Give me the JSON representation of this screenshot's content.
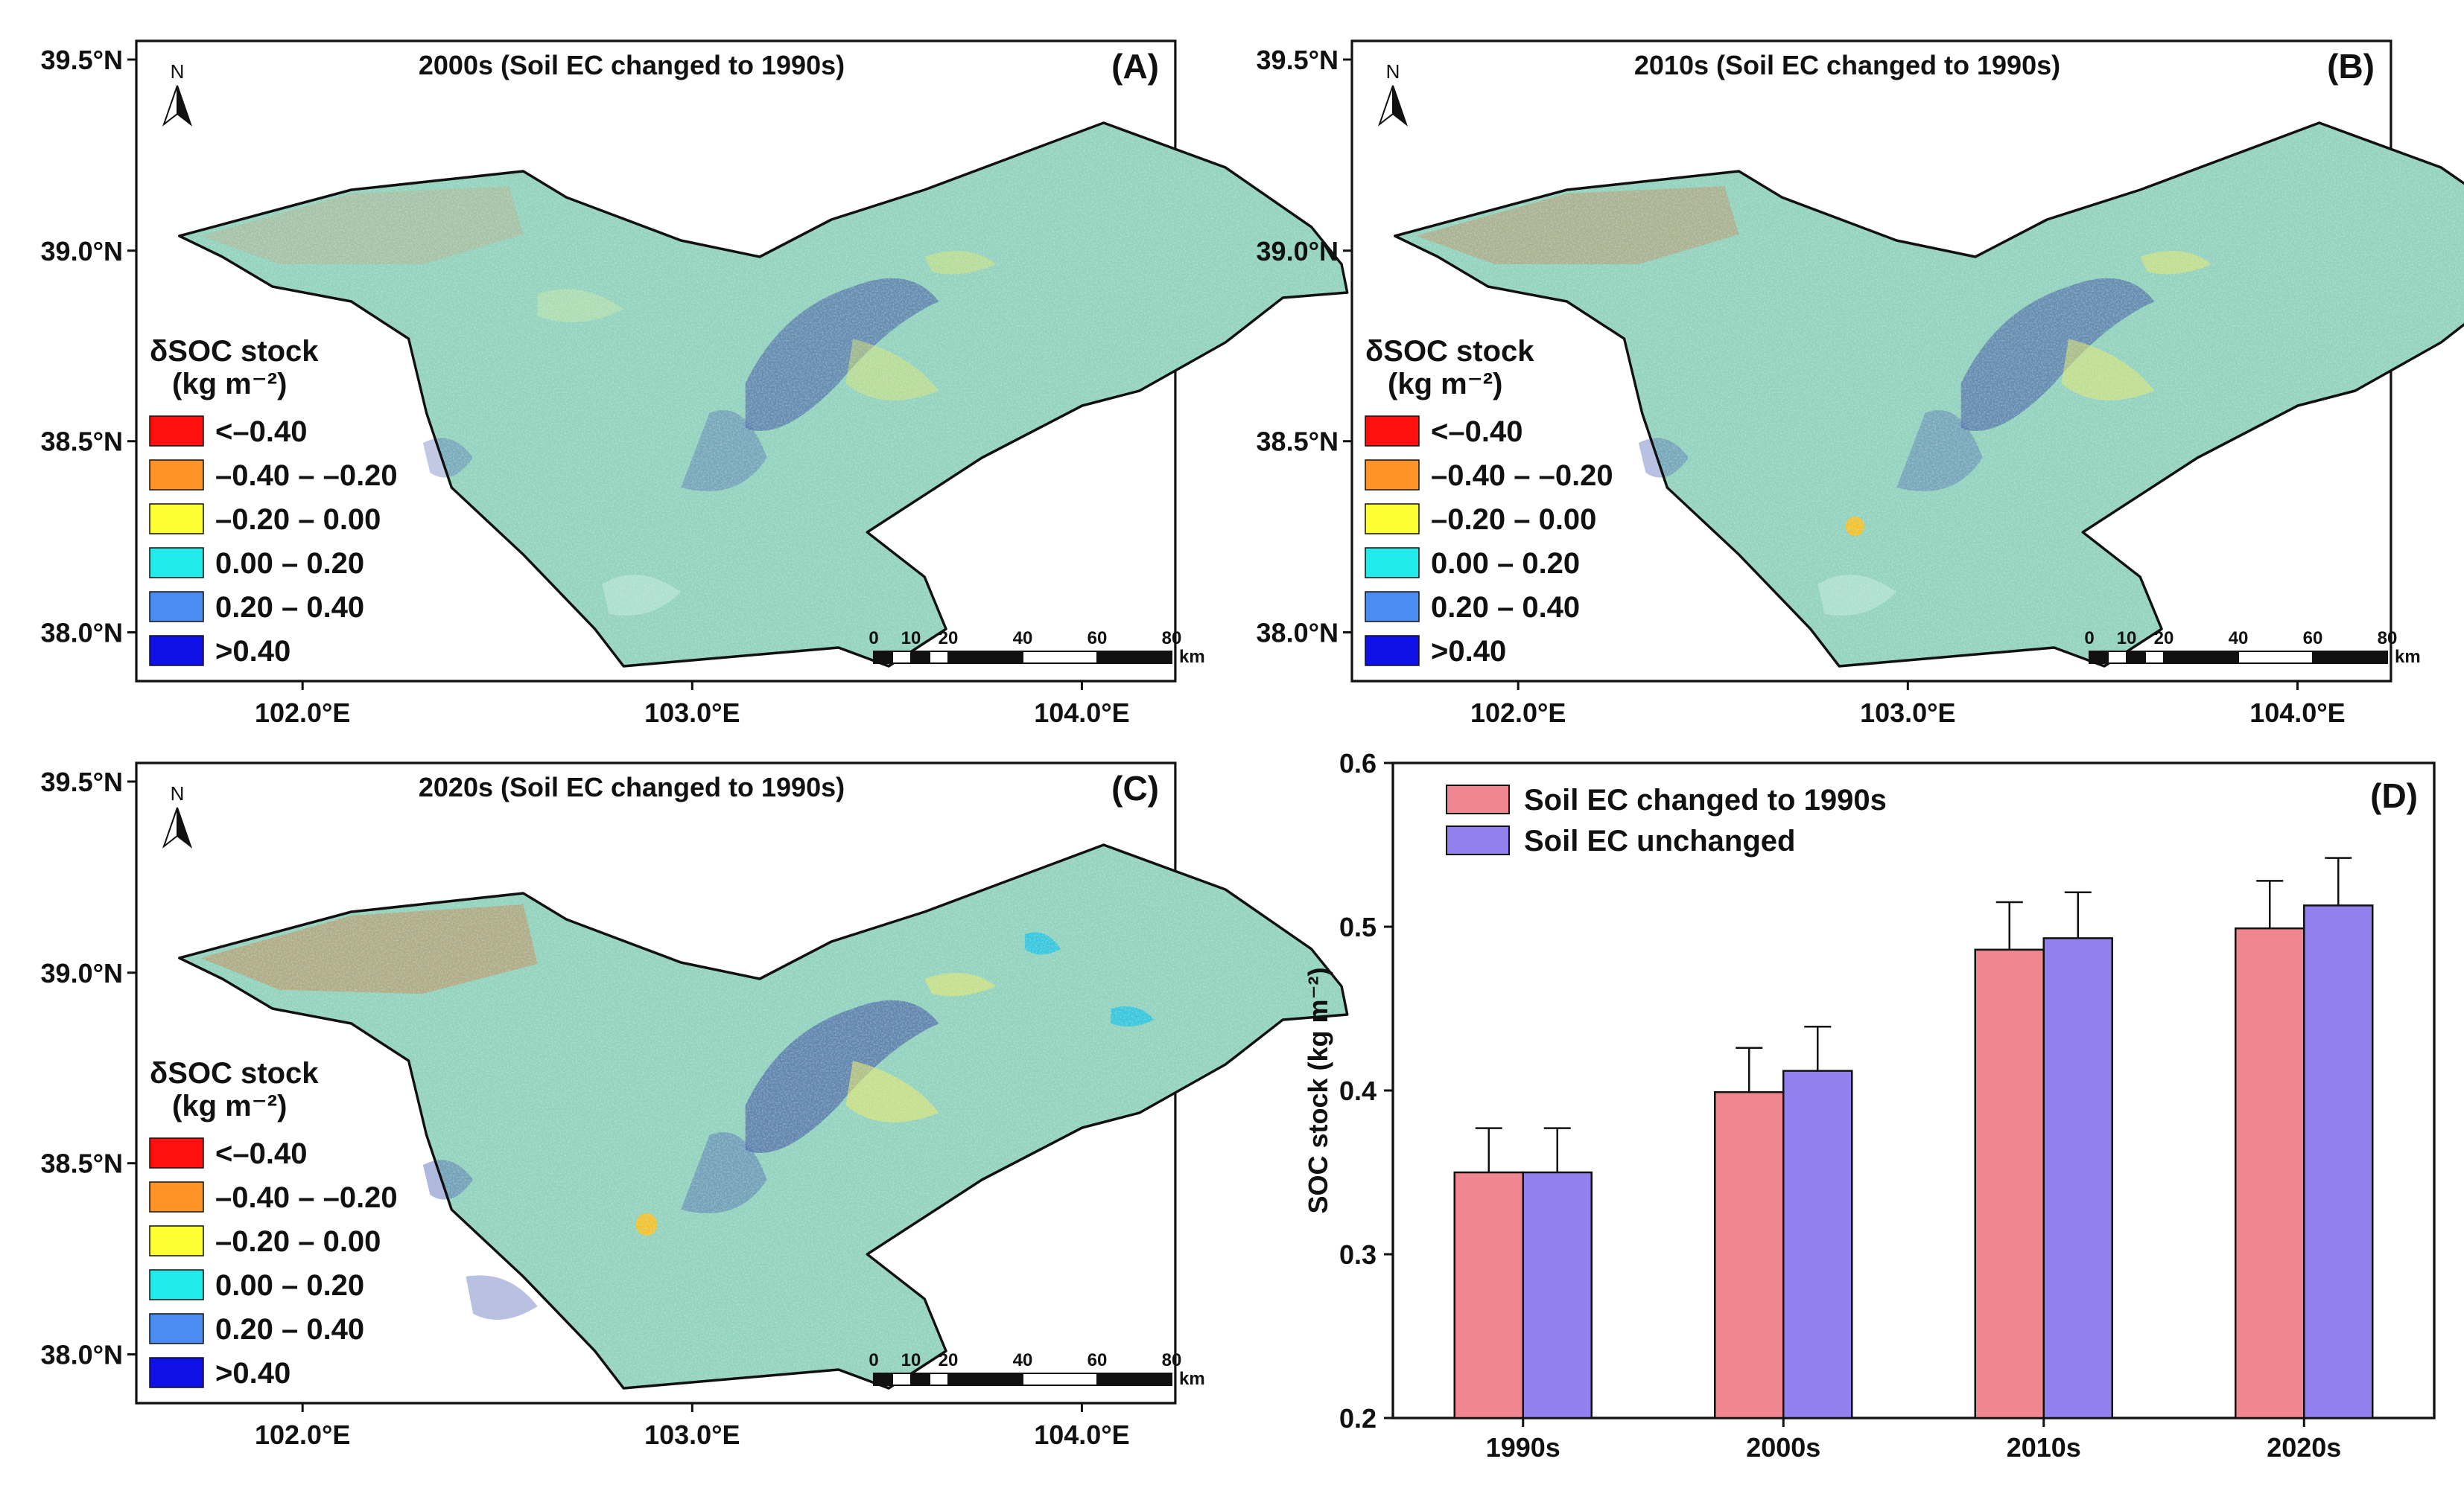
{
  "figure": {
    "panels": [
      {
        "label": "(A)",
        "title": "2000s (Soil EC changed to 1990s)",
        "variant": 0
      },
      {
        "label": "(B)",
        "title": "2010s (Soil EC changed to 1990s)",
        "variant": 1
      },
      {
        "label": "(C)",
        "title": "2020s (Soil EC changed to 1990s)",
        "variant": 2
      }
    ],
    "map_axes": {
      "lat_labels": [
        "39.5°N",
        "39.0°N",
        "38.5°N",
        "38.0°N"
      ],
      "lon_labels": [
        "102.0°E",
        "103.0°E",
        "104.0°E"
      ]
    },
    "north_arrow": "N",
    "legend": {
      "title_line1": "δSOC stock",
      "title_line2": "(kg m⁻²)",
      "items": [
        {
          "label": "<–0.40",
          "color": "#ff1010"
        },
        {
          "label": "–0.40 – –0.20",
          "color": "#ff9326"
        },
        {
          "label": "–0.20 – 0.00",
          "color": "#ffff33"
        },
        {
          "label": "0.00 – 0.20",
          "color": "#22eaea"
        },
        {
          "label": "0.20 – 0.40",
          "color": "#4a8cf0"
        },
        {
          "label": ">0.40",
          "color": "#1010e8"
        }
      ]
    },
    "scale_bar": {
      "labels": [
        "0",
        "10",
        "20",
        "40",
        "60",
        "80"
      ],
      "unit": "km"
    },
    "colors": {
      "bar_changed": "#f0868f",
      "bar_unchanged": "#9280ee",
      "map_base": "#93d2be",
      "outline": "#111111"
    }
  },
  "chart_data": {
    "type": "bar",
    "panel_label": "(D)",
    "categories": [
      "1990s",
      "2000s",
      "2010s",
      "2020s"
    ],
    "ylabel": "SOC stock (kg m⁻²)",
    "ylim": [
      0.2,
      0.6
    ],
    "yticks": [
      "0.2",
      "0.3",
      "0.4",
      "0.5",
      "0.6"
    ],
    "legend_position": "top-left",
    "series": [
      {
        "name": "Soil EC changed to 1990s",
        "values": [
          0.35,
          0.399,
          0.486,
          0.499
        ],
        "errors": [
          0.027,
          0.027,
          0.029,
          0.029
        ]
      },
      {
        "name": "Soil EC unchanged",
        "values": [
          0.35,
          0.412,
          0.493,
          0.513
        ],
        "errors": [
          0.027,
          0.027,
          0.028,
          0.029
        ]
      }
    ]
  }
}
